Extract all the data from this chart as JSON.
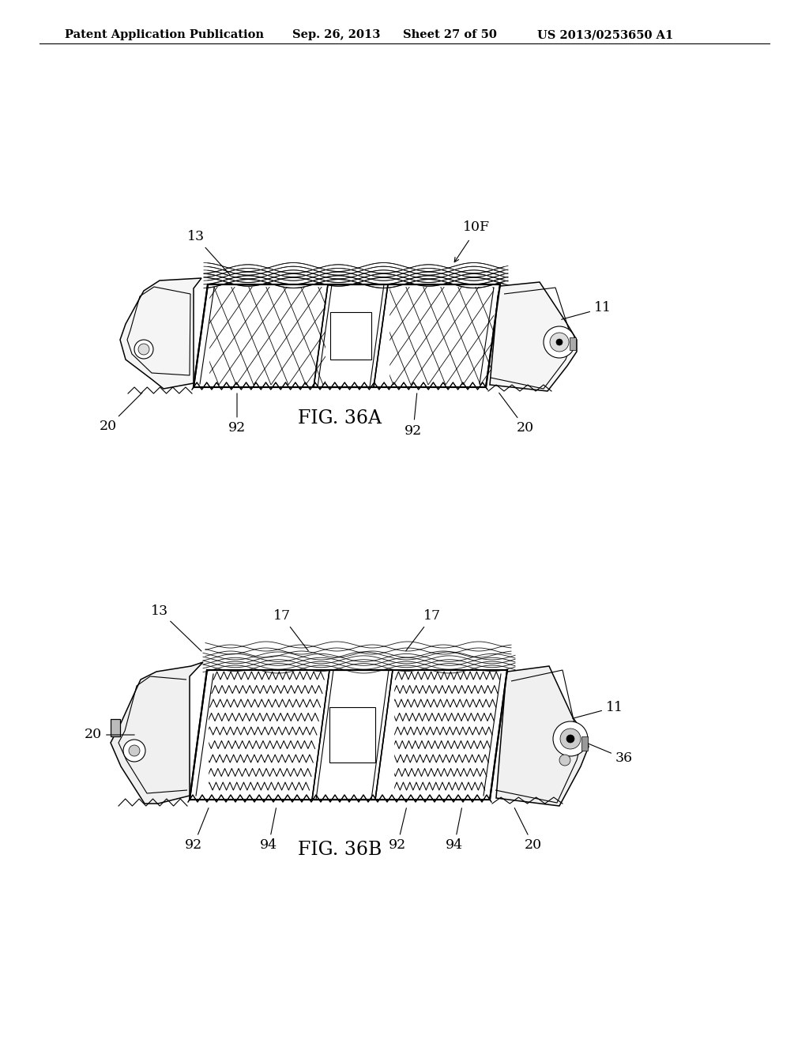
{
  "background_color": "#ffffff",
  "header_left": "Patent Application Publication",
  "header_center": "Sep. 26, 2013  Sheet 27 of 50",
  "header_right": "US 2013/0253650 A1",
  "header_fontsize": 10.5,
  "fig36a_caption": "FIG. 36A",
  "fig36b_caption": "FIG. 36B",
  "caption_fontsize": 17,
  "label_fontsize": 12.5,
  "line_color": "#000000",
  "bg_color": "#ffffff"
}
